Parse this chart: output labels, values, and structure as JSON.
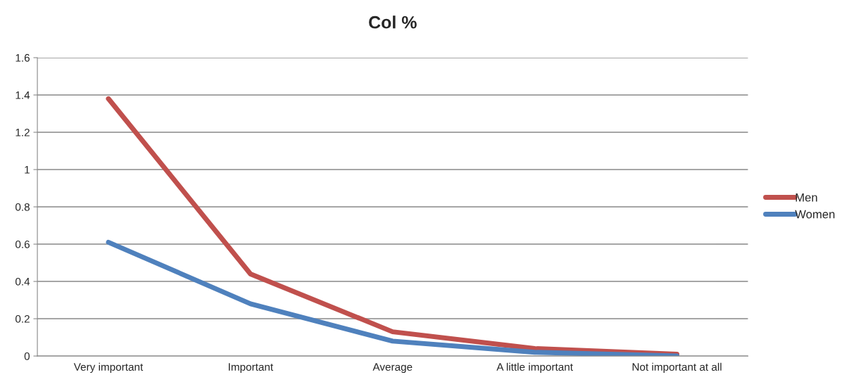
{
  "chart_data": {
    "type": "line",
    "title": "Col %",
    "categories": [
      "Very important",
      "Important",
      "Average",
      "A little important",
      "Not important at all"
    ],
    "series": [
      {
        "name": "Men",
        "color": "#c0504d",
        "values": [
          1.38,
          0.44,
          0.13,
          0.04,
          0.01
        ]
      },
      {
        "name": "Women",
        "color": "#4f81bd",
        "values": [
          0.61,
          0.28,
          0.08,
          0.02,
          0.0
        ]
      }
    ],
    "ylim": [
      0,
      1.6
    ],
    "yticks": [
      0,
      0.2,
      0.4,
      0.6,
      0.8,
      1,
      1.2,
      1.4,
      1.6
    ],
    "grid": "y",
    "legend": "right",
    "marker": "none",
    "line_style": "solid"
  }
}
